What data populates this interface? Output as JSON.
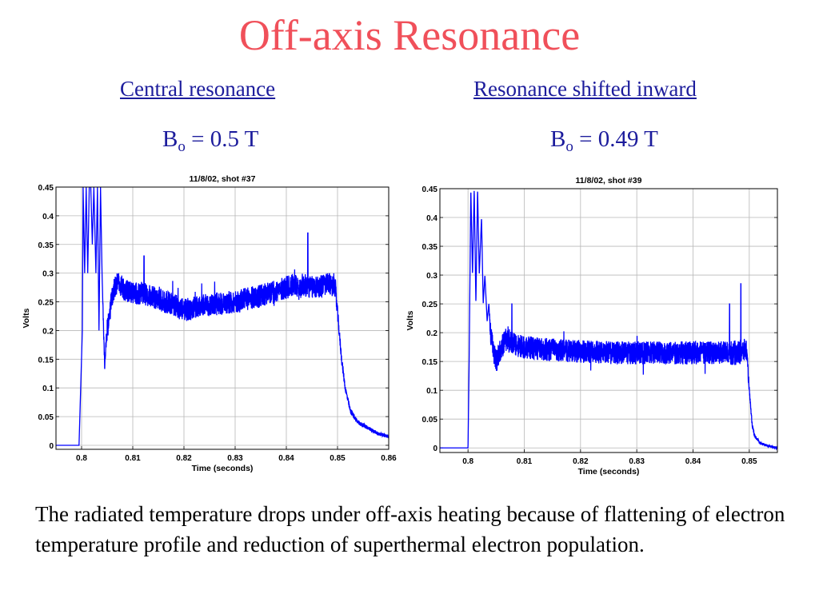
{
  "slide": {
    "title": "Off-axis Resonance",
    "left": {
      "heading": "Central resonance",
      "field_symbol": "B",
      "field_sub": "o",
      "field_value": " = 0.5 T"
    },
    "right": {
      "heading": "Resonance shifted inward",
      "field_symbol": "B",
      "field_sub": "o",
      "field_value": " = 0.49 T"
    },
    "caption": "The radiated temperature drops under off-axis heating because of flattening of electron temperature profile and reduction of superthermal electron population."
  },
  "colors": {
    "title": "#f0505a",
    "heading": "#1c1c9c",
    "trace": "#0000ff",
    "grid": "#b8b8b8"
  },
  "chart_data": [
    {
      "type": "line",
      "title": "11/8/02, shot #37",
      "xlabel": "Time (seconds)",
      "ylabel": "Volts",
      "xlim": [
        0.795,
        0.86
      ],
      "ylim": [
        -0.007,
        0.45
      ],
      "xticks": [
        "0.8",
        "0.81",
        "0.82",
        "0.83",
        "0.84",
        "0.85",
        "0.86"
      ],
      "xtick_values": [
        0.8,
        0.81,
        0.82,
        0.83,
        0.84,
        0.85,
        0.86
      ],
      "yticks": [
        "0",
        "0.05",
        "0.1",
        "0.15",
        "0.2",
        "0.25",
        "0.3",
        "0.35",
        "0.4",
        "0.45"
      ],
      "ytick_values": [
        0,
        0.05,
        0.1,
        0.15,
        0.2,
        0.25,
        0.3,
        0.35,
        0.4,
        0.45
      ],
      "grid": true,
      "series": [
        {
          "x": [
            0.795,
            0.7995,
            0.80015,
            0.8003,
            0.8006,
            0.8009,
            0.8012,
            0.8015,
            0.8018,
            0.8021,
            0.8024,
            0.8028,
            0.8031,
            0.8034,
            0.8037,
            0.804,
            0.8043,
            0.8045,
            0.8048,
            0.805,
            0.8053,
            0.8058,
            0.8062,
            0.8068,
            0.8075,
            0.8085,
            0.81,
            0.812,
            0.815,
            0.818,
            0.82,
            0.822,
            0.825,
            0.828,
            0.83,
            0.832,
            0.835,
            0.838,
            0.84,
            0.8415,
            0.8425,
            0.843,
            0.845,
            0.848,
            0.8495,
            0.8503,
            0.8508,
            0.8515,
            0.8525,
            0.854,
            0.856,
            0.858,
            0.86
          ],
          "y": [
            0.0,
            0.0,
            0.2,
            0.45,
            0.3,
            0.45,
            0.3,
            0.45,
            0.45,
            0.35,
            0.45,
            0.3,
            0.45,
            0.2,
            0.45,
            0.3,
            0.2,
            0.14,
            0.18,
            0.2,
            0.22,
            0.25,
            0.27,
            0.28,
            0.28,
            0.27,
            0.265,
            0.265,
            0.255,
            0.245,
            0.235,
            0.24,
            0.245,
            0.248,
            0.25,
            0.255,
            0.26,
            0.268,
            0.275,
            0.28,
            0.27,
            0.28,
            0.275,
            0.28,
            0.28,
            0.2,
            0.15,
            0.1,
            0.06,
            0.04,
            0.03,
            0.02,
            0.015
          ],
          "noise": [
            0,
            0,
            0,
            0,
            0,
            0,
            0,
            0,
            0,
            0,
            0,
            0,
            0,
            0,
            0,
            0,
            0.01,
            0.01,
            0.015,
            0.02,
            0.02,
            0.02,
            0.02,
            0.02,
            0.02,
            0.02,
            0.02,
            0.02,
            0.02,
            0.02,
            0.02,
            0.02,
            0.02,
            0.02,
            0.02,
            0.02,
            0.02,
            0.02,
            0.02,
            0.02,
            0.02,
            0.02,
            0.02,
            0.02,
            0.02,
            0.01,
            0.008,
            0.006,
            0.005,
            0.004,
            0.003,
            0.003,
            0.003
          ],
          "spikes": [
            [
              0.8442,
              0.37
            ],
            [
              0.8122,
              0.33
            ]
          ]
        }
      ]
    },
    {
      "type": "line",
      "title": "11/8/02, shot #39",
      "xlabel": "Time (seconds)",
      "ylabel": "Volts",
      "xlim": [
        0.795,
        0.855
      ],
      "ylim": [
        -0.008,
        0.45
      ],
      "xticks": [
        "0.8",
        "0.81",
        "0.82",
        "0.83",
        "0.84",
        "0.85"
      ],
      "xtick_values": [
        0.8,
        0.81,
        0.82,
        0.83,
        0.84,
        0.85
      ],
      "yticks": [
        "0",
        "0.05",
        "0.1",
        "0.15",
        "0.2",
        "0.25",
        "0.3",
        "0.35",
        "0.4",
        "0.45"
      ],
      "ytick_values": [
        0,
        0.05,
        0.1,
        0.15,
        0.2,
        0.25,
        0.3,
        0.35,
        0.4,
        0.45
      ],
      "grid": true,
      "series": [
        {
          "x": [
            0.795,
            0.7993,
            0.8,
            0.8002,
            0.8005,
            0.8008,
            0.8011,
            0.8014,
            0.8017,
            0.802,
            0.8024,
            0.8027,
            0.803,
            0.8034,
            0.8037,
            0.804,
            0.8045,
            0.805,
            0.8058,
            0.8068,
            0.808,
            0.81,
            0.815,
            0.82,
            0.825,
            0.83,
            0.835,
            0.84,
            0.845,
            0.848,
            0.8495,
            0.85,
            0.8505,
            0.851,
            0.852,
            0.8535,
            0.855
          ],
          "y": [
            0.0,
            0.0,
            0.0,
            0.15,
            0.45,
            0.3,
            0.45,
            0.25,
            0.45,
            0.3,
            0.4,
            0.25,
            0.3,
            0.22,
            0.25,
            0.2,
            0.17,
            0.15,
            0.17,
            0.19,
            0.18,
            0.175,
            0.17,
            0.168,
            0.165,
            0.165,
            0.165,
            0.165,
            0.165,
            0.165,
            0.17,
            0.1,
            0.04,
            0.02,
            0.008,
            0.003,
            0.0
          ],
          "noise": [
            0,
            0,
            0,
            0,
            0,
            0,
            0,
            0,
            0,
            0,
            0,
            0,
            0,
            0,
            0,
            0.02,
            0.02,
            0.02,
            0.02,
            0.022,
            0.02,
            0.02,
            0.02,
            0.02,
            0.02,
            0.02,
            0.02,
            0.02,
            0.02,
            0.022,
            0.02,
            0.005,
            0.004,
            0.003,
            0.002,
            0.002,
            0.002
          ],
          "spikes": [
            [
              0.8485,
              0.285
            ],
            [
              0.8078,
              0.25
            ],
            [
              0.8465,
              0.25
            ]
          ]
        }
      ]
    }
  ]
}
